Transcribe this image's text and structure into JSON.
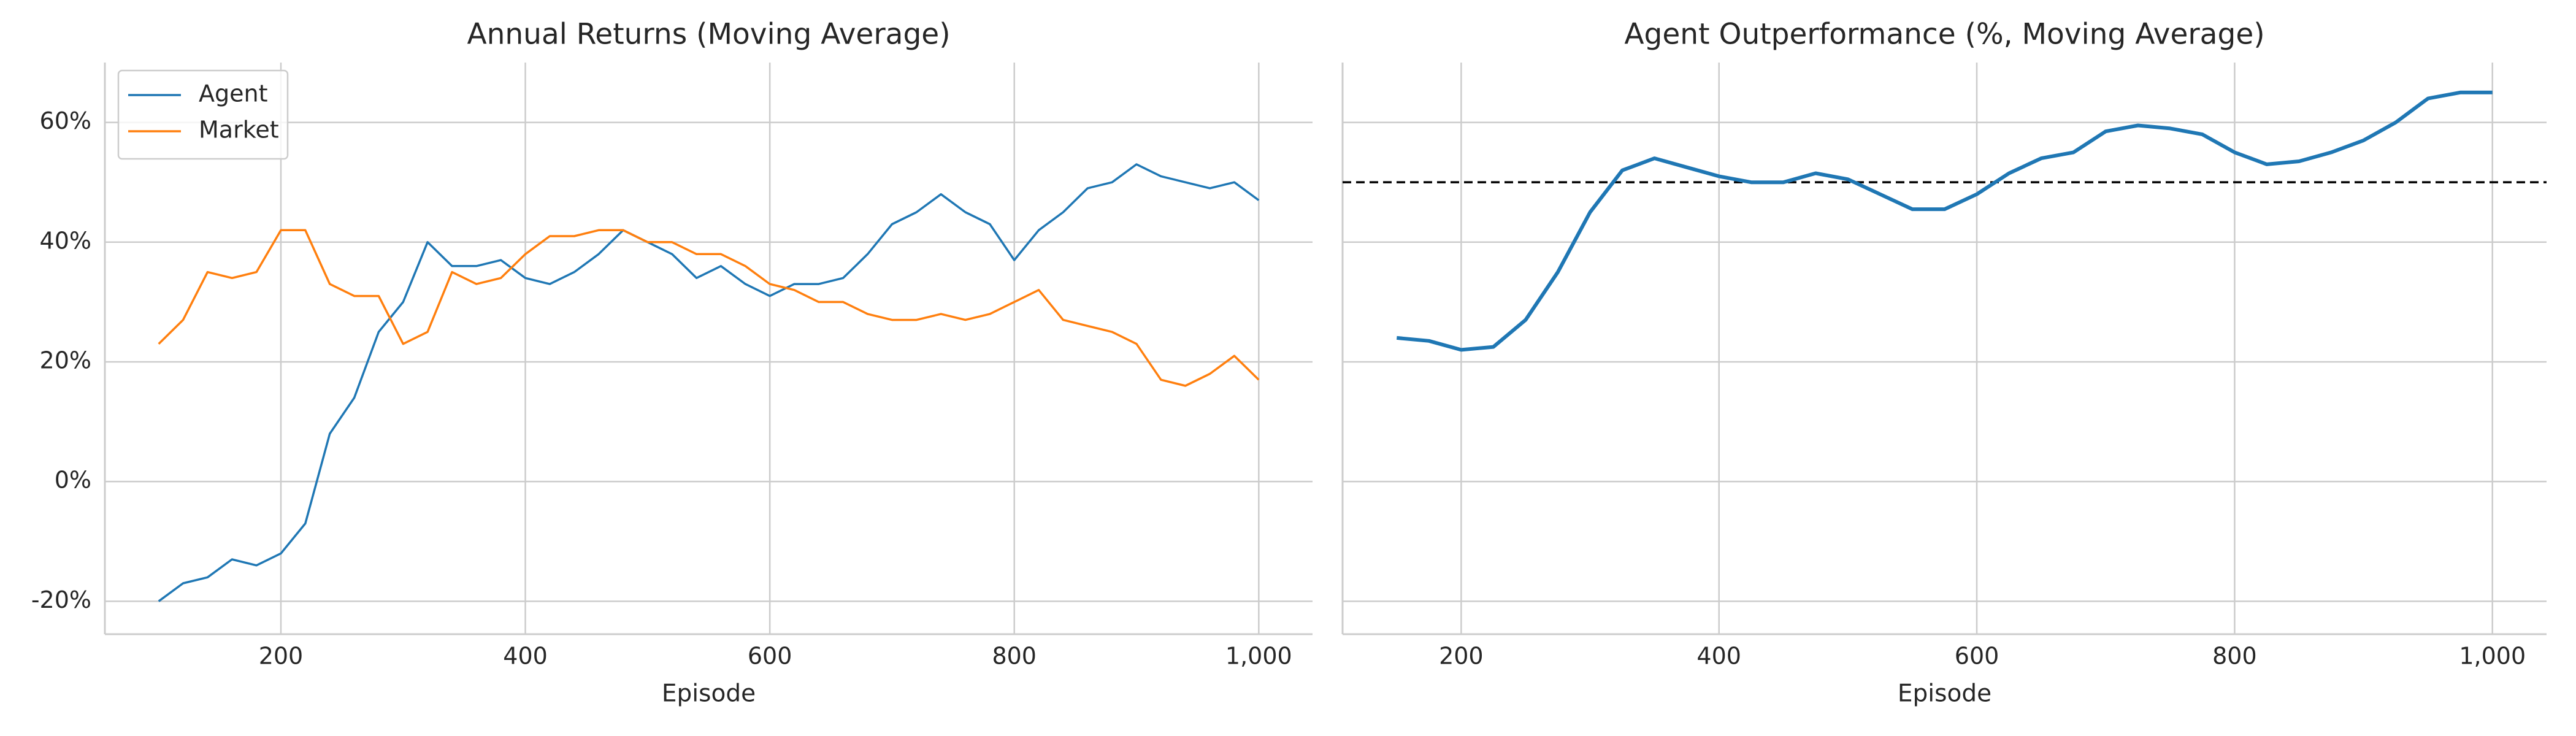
{
  "chart_data": [
    {
      "type": "line",
      "title": "Annual Returns (Moving Average)",
      "x_label": "Episode",
      "x": [
        100,
        120,
        140,
        160,
        180,
        200,
        220,
        240,
        260,
        280,
        300,
        320,
        340,
        360,
        380,
        400,
        420,
        440,
        460,
        480,
        500,
        520,
        540,
        560,
        580,
        600,
        620,
        640,
        660,
        680,
        700,
        720,
        740,
        760,
        780,
        800,
        820,
        840,
        860,
        880,
        900,
        920,
        940,
        960,
        980,
        1000
      ],
      "series": [
        {
          "name": "Agent",
          "color": "#1f77b4",
          "values": [
            -20,
            -17,
            -16,
            -13,
            -14,
            -12,
            -7,
            8,
            14,
            25,
            30,
            40,
            36,
            36,
            37,
            34,
            33,
            35,
            38,
            42,
            40,
            38,
            34,
            36,
            33,
            31,
            33,
            33,
            34,
            38,
            43,
            45,
            48,
            45,
            43,
            37,
            42,
            45,
            49,
            50,
            53,
            51,
            50,
            49,
            50,
            47
          ]
        },
        {
          "name": "Market",
          "color": "#ff7f0e",
          "values": [
            23,
            27,
            35,
            34,
            35,
            42,
            42,
            33,
            31,
            31,
            23,
            25,
            35,
            33,
            34,
            38,
            41,
            41,
            42,
            42,
            40,
            40,
            38,
            38,
            36,
            33,
            32,
            30,
            30,
            28,
            27,
            27,
            28,
            27,
            28,
            30,
            32,
            27,
            26,
            25,
            23,
            17,
            16,
            18,
            21,
            17
          ]
        }
      ],
      "xlim": [
        56,
        1044
      ],
      "xticks": [
        200,
        400,
        600,
        800,
        {
          "value": 1000,
          "label": "1,000"
        }
      ],
      "ylim": [
        -25.5,
        70
      ],
      "yticks": [
        {
          "value": -20,
          "label": "-20%"
        },
        {
          "value": 0,
          "label": "0%"
        },
        {
          "value": 20,
          "label": "20%"
        },
        {
          "value": 40,
          "label": "40%"
        },
        {
          "value": 60,
          "label": "60%"
        }
      ],
      "grid": true,
      "legend": "upper left"
    },
    {
      "type": "line",
      "title": "Agent Outperformance (%, Moving Average)",
      "x_label": "Episode",
      "x": [
        150,
        175,
        200,
        225,
        250,
        275,
        300,
        325,
        350,
        375,
        400,
        425,
        450,
        475,
        500,
        525,
        550,
        575,
        600,
        625,
        650,
        675,
        700,
        725,
        750,
        775,
        800,
        825,
        850,
        875,
        900,
        925,
        950,
        975,
        1000
      ],
      "series": [
        {
          "color": "#1f77b4",
          "values": [
            24,
            23.5,
            22,
            22.5,
            27,
            35,
            45,
            52,
            54,
            52.5,
            51,
            50,
            50,
            51.5,
            50.5,
            48,
            45.5,
            45.5,
            48,
            51.5,
            54,
            55,
            58.5,
            59.5,
            59,
            58,
            55,
            53,
            53.5,
            55,
            57,
            60,
            64,
            65,
            65
          ]
        }
      ],
      "hline": 50,
      "hline_color": "#000000",
      "xlim": [
        108,
        1042
      ],
      "xticks": [
        200,
        400,
        600,
        800,
        {
          "value": 1000,
          "label": "1,000"
        }
      ],
      "sharey": true,
      "grid": true
    }
  ]
}
